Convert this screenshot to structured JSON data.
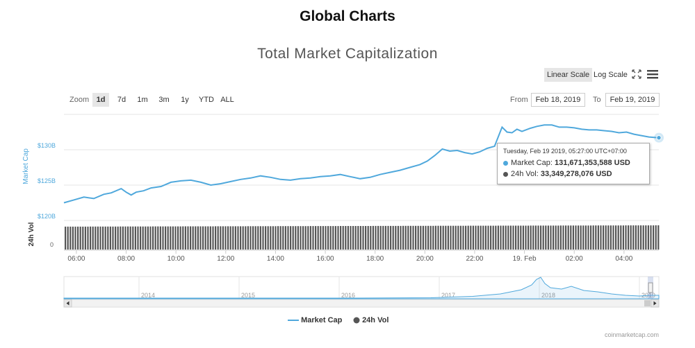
{
  "page": {
    "title": "Global Charts"
  },
  "controls": {
    "scale": [
      "Linear Scale",
      "Log Scale"
    ],
    "active_scale": "Linear Scale",
    "zoom_label": "Zoom",
    "zoom_options": [
      "1d",
      "7d",
      "1m",
      "3m",
      "1y",
      "YTD",
      "ALL"
    ],
    "active_zoom": "1d",
    "from_label": "From",
    "from_value": "Feb 18, 2019",
    "to_label": "To",
    "to_value": "Feb 19, 2019",
    "fullscreen_icon": "expand-arrows-icon",
    "menu_icon": "hamburger-menu-icon"
  },
  "tooltip": {
    "date": "Tuesday, Feb 19 2019, 05:27:00 UTC+07:00",
    "market_cap_label": "Market Cap:",
    "market_cap_value": "131,671,353,588 USD",
    "vol_label": "24h Vol:",
    "vol_value": "33,349,278,076 USD"
  },
  "colors": {
    "market_cap": "#4fa8dc",
    "volume": "#555555",
    "nav_line": "#4fa8dc"
  },
  "legend": [
    "Market Cap",
    "24h Vol"
  ],
  "credit": "coinmarketcap.com",
  "chart_data": {
    "type": "line",
    "title": "Total Market Capitalization",
    "ylabel": "Market Cap",
    "ylabel2": "24h Vol",
    "y_ticks": [
      "$120B",
      "$125B",
      "$130B"
    ],
    "y_tick_values": [
      120,
      125,
      130
    ],
    "y2_ticks": [
      "0"
    ],
    "ylim": [
      120,
      135
    ],
    "x_ticks": [
      "06:00",
      "08:00",
      "10:00",
      "12:00",
      "14:00",
      "16:00",
      "18:00",
      "20:00",
      "22:00",
      "19. Feb",
      "02:00",
      "04:00"
    ],
    "x_tick_hours": [
      6,
      8,
      10,
      12,
      14,
      16,
      18,
      20,
      22,
      24,
      26,
      28
    ],
    "series": [
      {
        "name": "Market Cap",
        "unit": "B USD",
        "x_hours": [
          5.5,
          5.9,
          6.3,
          6.7,
          7.1,
          7.4,
          7.8,
          8.0,
          8.2,
          8.4,
          8.7,
          9.0,
          9.4,
          9.8,
          10.2,
          10.6,
          11.0,
          11.4,
          11.8,
          12.2,
          12.6,
          13.0,
          13.4,
          13.8,
          14.2,
          14.6,
          15.0,
          15.4,
          15.8,
          16.2,
          16.6,
          17.0,
          17.4,
          17.8,
          18.2,
          18.6,
          19.0,
          19.4,
          19.8,
          20.1,
          20.4,
          20.7,
          21.0,
          21.3,
          21.6,
          21.9,
          22.2,
          22.5,
          22.8,
          23.1,
          23.3,
          23.5,
          23.7,
          23.9,
          24.2,
          24.5,
          24.8,
          25.1,
          25.4,
          25.7,
          26.0,
          26.3,
          26.6,
          26.9,
          27.2,
          27.5,
          27.8,
          28.1,
          28.4,
          28.7,
          29.0,
          29.4
        ],
        "values": [
          122.5,
          122.9,
          123.3,
          123.1,
          123.7,
          123.9,
          124.5,
          124.0,
          123.6,
          124.0,
          124.2,
          124.6,
          124.8,
          125.4,
          125.6,
          125.7,
          125.4,
          125.0,
          125.2,
          125.5,
          125.8,
          126.0,
          126.3,
          126.1,
          125.8,
          125.7,
          125.9,
          126.0,
          126.2,
          126.3,
          126.5,
          126.2,
          125.9,
          126.1,
          126.5,
          126.8,
          127.1,
          127.5,
          127.9,
          128.4,
          129.2,
          130.1,
          129.8,
          129.9,
          129.6,
          129.4,
          129.7,
          130.2,
          130.5,
          133.2,
          132.5,
          132.4,
          132.9,
          132.6,
          133.0,
          133.3,
          133.5,
          133.5,
          133.2,
          133.2,
          133.1,
          132.9,
          132.8,
          132.8,
          132.7,
          132.6,
          132.4,
          132.5,
          132.2,
          132.0,
          131.8,
          131.7
        ]
      },
      {
        "name": "24h Vol",
        "unit": "B USD",
        "x_hours": [
          5.5,
          29.4
        ],
        "values": [
          31.5,
          33.3
        ]
      }
    ],
    "navigator_x_ticks": [
      "2014",
      "2015",
      "2016",
      "2017",
      "2018",
      "2019"
    ]
  }
}
